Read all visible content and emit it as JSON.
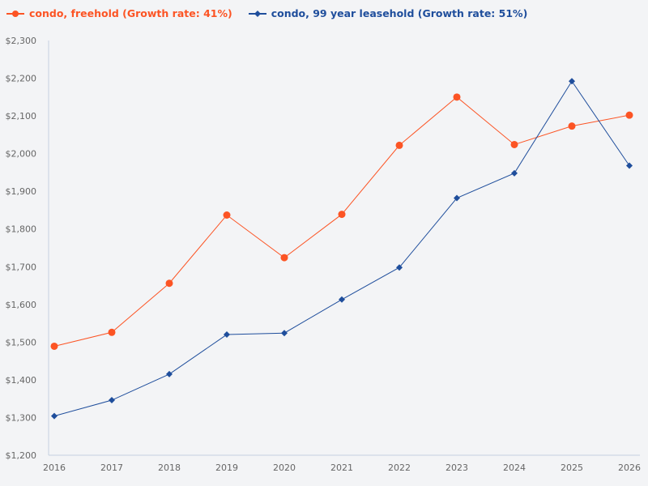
{
  "chart_data": {
    "type": "line",
    "title": "",
    "xlabel": "",
    "ylabel": "",
    "categories": [
      "2016",
      "2017",
      "2018",
      "2019",
      "2020",
      "2021",
      "2022",
      "2023",
      "2024",
      "2025",
      "2026"
    ],
    "ylim": [
      1200,
      2300
    ],
    "yticks": [
      1200,
      1300,
      1400,
      1500,
      1600,
      1700,
      1800,
      1900,
      2000,
      2100,
      2200,
      2300
    ],
    "ytick_labels": [
      "$1,200",
      "$1,300",
      "$1,400",
      "$1,500",
      "$1,600",
      "$1,700",
      "$1,800",
      "$1,900",
      "$2,000",
      "$2,100",
      "$2,200",
      "$2,300"
    ],
    "grid": false,
    "legend_position": "top-left",
    "series": [
      {
        "name": "condo, freehold (Growth rate: 41%)",
        "color": "#fc5424",
        "marker": "circle",
        "values": [
          1489,
          1526,
          1656,
          1837,
          1724,
          1839,
          2022,
          2150,
          2024,
          2073,
          2102
        ]
      },
      {
        "name": "condo, 99 year leasehold (Growth rate: 51%)",
        "color": "#1f4e9c",
        "marker": "diamond",
        "values": [
          1304,
          1346,
          1415,
          1520,
          1524,
          1613,
          1698,
          1882,
          1948,
          2192,
          1968
        ]
      }
    ]
  }
}
